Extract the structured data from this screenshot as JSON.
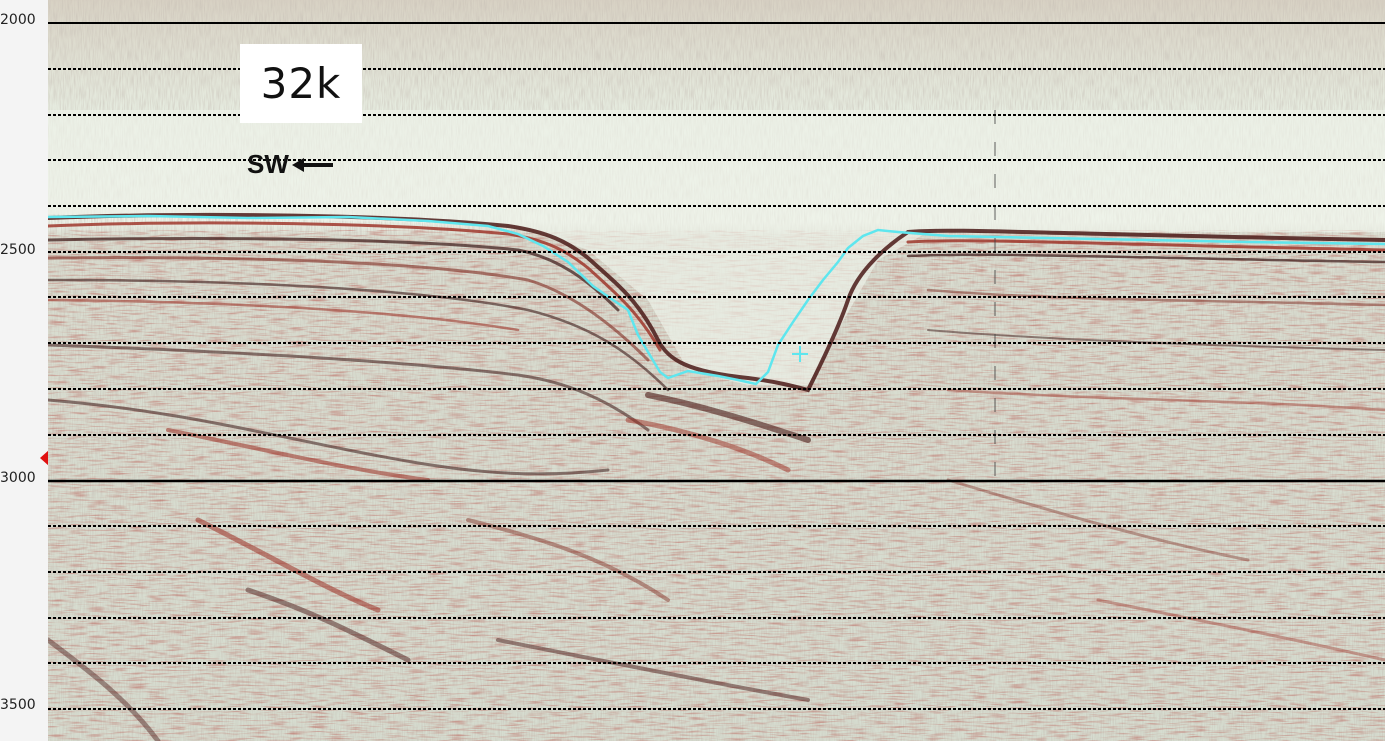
{
  "section_label": "32k",
  "direction_label": "SW",
  "depth_axis": {
    "ticks": [
      "2000",
      "2500",
      "3000",
      "3500"
    ]
  },
  "colors": {
    "horizon_pick": "#5ee6ee",
    "background": "#dfe7d8",
    "trace_dark": "#2a1210",
    "trace_red": "#9b2d22",
    "marker": "#e01010"
  }
}
